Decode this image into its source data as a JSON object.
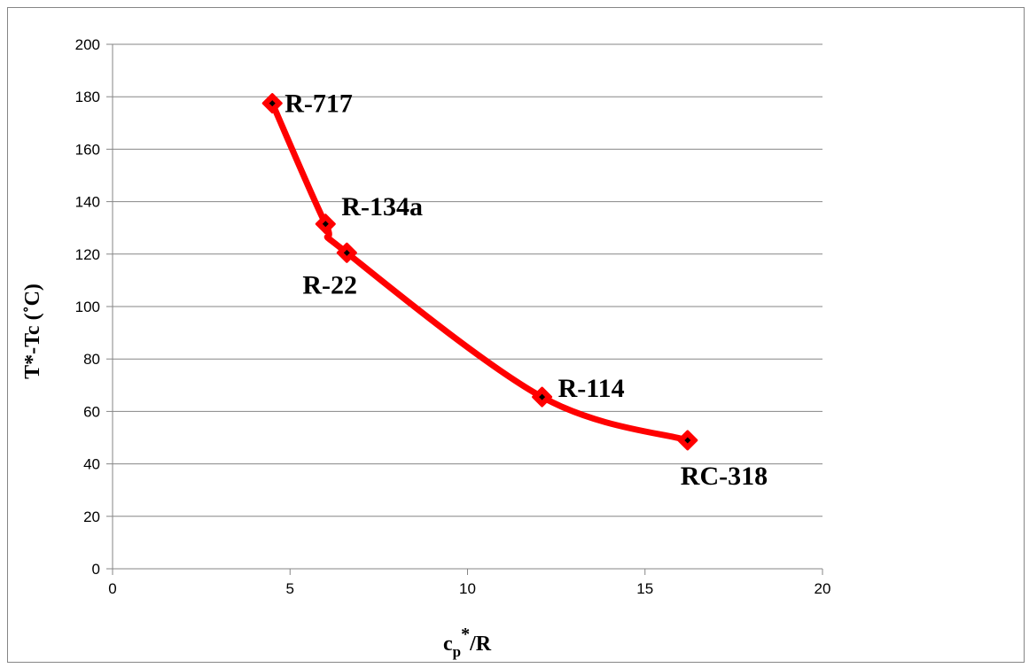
{
  "chart_data": {
    "type": "line",
    "smooth": true,
    "xlabel_main": "c",
    "xlabel_sub": "p",
    "xlabel_sup": "*",
    "xlabel_tail": "/R",
    "ylabel": "T*-Tc (˚C)",
    "xlim": [
      0,
      20
    ],
    "ylim": [
      0,
      200
    ],
    "x_ticks": [
      0,
      5,
      10,
      15,
      20
    ],
    "y_ticks": [
      0,
      20,
      40,
      60,
      80,
      100,
      120,
      140,
      160,
      180,
      200
    ],
    "grid": {
      "horizontal": true,
      "vertical": false
    },
    "colors": {
      "line": "#ff0000",
      "marker_center": "#000000",
      "grid": "#868686"
    },
    "points": [
      {
        "label": "R-717",
        "x": 4.5,
        "y": 177.5
      },
      {
        "label": "R-134a",
        "x": 6.0,
        "y": 131.5
      },
      {
        "label": "R-22",
        "x": 6.6,
        "y": 120.5
      },
      {
        "label": "R-114",
        "x": 12.1,
        "y": 65.5
      },
      {
        "label": "RC-318",
        "x": 16.2,
        "y": 49
      }
    ]
  }
}
